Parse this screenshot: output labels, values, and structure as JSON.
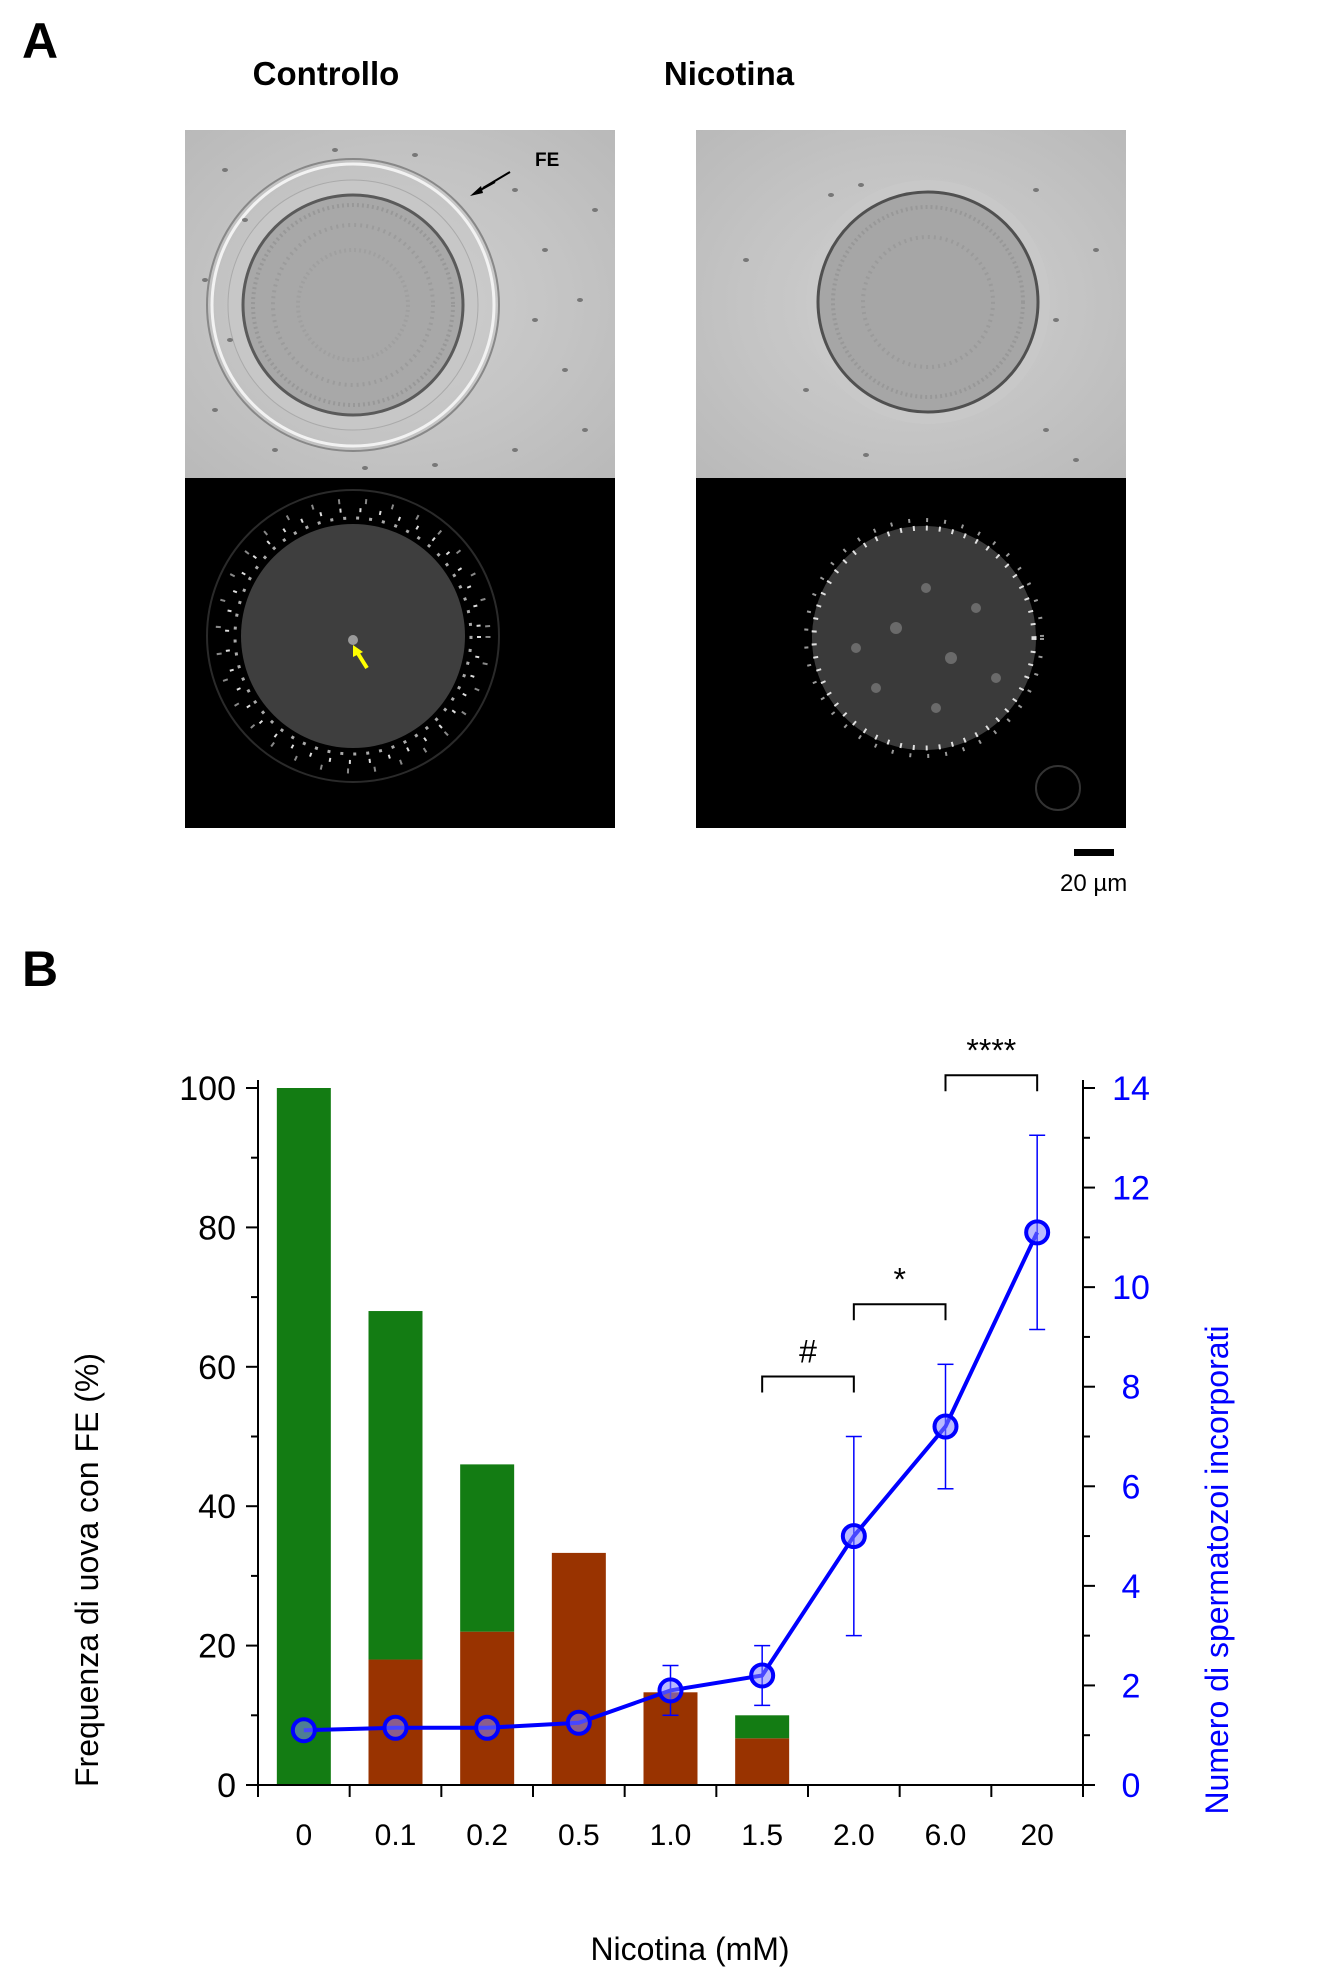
{
  "panel_a": {
    "letter": "A",
    "col_left_title": "Controllo",
    "col_right_title": "Nicotina",
    "annotation_fe": "FE",
    "scale_label": "20 µm"
  },
  "panel_b": {
    "letter": "B"
  },
  "chart_data": {
    "type": "bar+line",
    "categories": [
      "0",
      "0.1",
      "0.2",
      "0.5",
      "1.0",
      "1.5",
      "2.0",
      "6.0",
      "20"
    ],
    "xlabel": "Nicotina (mM)",
    "ylabel_left": "Frequenza di uova con FE (%)",
    "ylabel_right": "Numero di spermatozoi  incorporati",
    "ylim_left": [
      0,
      100
    ],
    "ylim_right": [
      0,
      14
    ],
    "yticks_left": [
      "0",
      "20",
      "40",
      "60",
      "80",
      "100"
    ],
    "yticks_right": [
      "0",
      "2",
      "4",
      "6",
      "8",
      "10",
      "12",
      "14"
    ],
    "bar_series": [
      {
        "color": "#137c13",
        "values": [
          100,
          68,
          46,
          0,
          0,
          10,
          0,
          0,
          0
        ]
      },
      {
        "color": "#993300",
        "values": [
          0,
          18,
          22,
          33.3,
          13.3,
          6.7,
          0,
          0,
          0
        ]
      }
    ],
    "line_series": {
      "color": "#0000ff",
      "values": [
        1.1,
        1.15,
        1.15,
        1.25,
        1.9,
        2.2,
        5.0,
        7.2,
        11.1
      ],
      "errors": [
        0,
        0,
        0,
        0,
        0.5,
        0.6,
        2.0,
        1.25,
        1.95
      ]
    },
    "significance": [
      {
        "from": "1.5",
        "to": "2.0",
        "label": "#"
      },
      {
        "from": "2.0",
        "to": "6.0",
        "label": "*"
      },
      {
        "from": "6.0",
        "to": "20",
        "label": "****"
      }
    ],
    "grid": false
  }
}
